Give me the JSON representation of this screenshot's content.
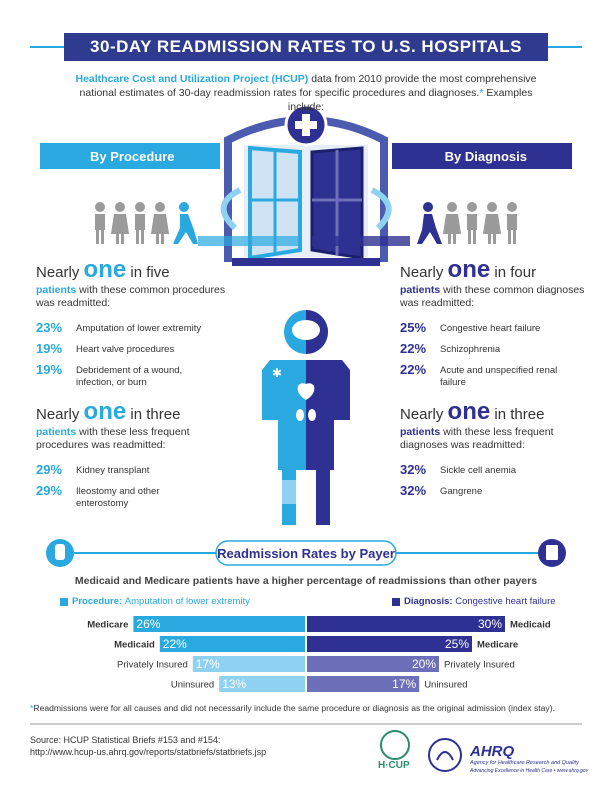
{
  "header": {
    "title": "30-DAY READMISSION RATES TO U.S. HOSPITALS"
  },
  "intro": {
    "lead": "Healthcare Cost and Utilization Project (HCUP)",
    "text": " data from 2010 provide the most comprehensive national estimates of 30-day readmission rates for specific procedures and diagnoses.",
    "asterisk": "*",
    "tail": " Examples include:"
  },
  "procedure": {
    "label": "By Procedure",
    "groups": [
      {
        "lead": "Nearly",
        "one": "one",
        "rest": "in five",
        "patients": "patients",
        "desc": " with these common procedures was readmitted:",
        "items": [
          {
            "pct": "23%",
            "text": "Amputation of lower extremity"
          },
          {
            "pct": "19%",
            "text": "Heart valve procedures"
          },
          {
            "pct": "19%",
            "text": "Debridement of a wound, infection, or burn"
          }
        ]
      },
      {
        "lead": "Nearly",
        "one": "one",
        "rest": "in three",
        "patients": "patients",
        "desc": " with these less frequent procedures was readmitted:",
        "items": [
          {
            "pct": "29%",
            "text": "Kidney transplant"
          },
          {
            "pct": "29%",
            "text": "Ileostomy and other enterostomy"
          }
        ]
      }
    ]
  },
  "diagnosis": {
    "label": "By Diagnosis",
    "groups": [
      {
        "lead": "Nearly",
        "one": "one",
        "rest": "in four",
        "patients": "patients",
        "desc": " with these common diagnoses was readmitted:",
        "items": [
          {
            "pct": "25%",
            "text": "Congestive heart failure"
          },
          {
            "pct": "22%",
            "text": "Schizophrenia"
          },
          {
            "pct": "22%",
            "text": "Acute and unspecified renal failure"
          }
        ]
      },
      {
        "lead": "Nearly",
        "one": "one",
        "rest": "in three",
        "patients": "patients",
        "desc": " with these less frequent diagnoses was readmitted:",
        "items": [
          {
            "pct": "32%",
            "text": "Sickle cell anemia"
          },
          {
            "pct": "32%",
            "text": "Gangrene"
          }
        ]
      }
    ]
  },
  "chart_data": {
    "type": "bar",
    "title": "Readmission Rates by Payer",
    "subtitle": "Medicaid and Medicare patients have a higher percentage of readmissions than other payers",
    "series": [
      {
        "name": "Procedure:",
        "description": "Amputation of lower extremity",
        "color": "#29a9e0",
        "categories": [
          "Medicare",
          "Medicaid",
          "Privately Insured",
          "Uninsured"
        ],
        "values": [
          26,
          22,
          17,
          13
        ],
        "value_labels": [
          "26%",
          "22%",
          "17%",
          "13%"
        ],
        "colors": [
          "#29a9e0",
          "#29a9e0",
          "#8fd1f1",
          "#8fd1f1"
        ]
      },
      {
        "name": "Diagnosis:",
        "description": "Congestive heart failure",
        "color": "#2e3192",
        "categories": [
          "Medicaid",
          "Medicare",
          "Privately Insured",
          "Uninsured"
        ],
        "values": [
          30,
          25,
          20,
          17
        ],
        "value_labels": [
          "30%",
          "25%",
          "20%",
          "17%"
        ],
        "colors": [
          "#2e3192",
          "#2e3192",
          "#6d6fb9",
          "#6d6fb9"
        ]
      }
    ]
  },
  "footnote": {
    "asterisk": "*",
    "text": "Readmissions were for all causes and did not necessarily include the same procedure or diagnosis as the original admission (index stay)."
  },
  "source": {
    "line1": "Source: HCUP Statistical Briefs #153 and #154:",
    "line2": "http://www.hcup-us.ahrq.gov/reports/statbriefs/statbriefs.jsp"
  },
  "logos": {
    "hcup": "H·CUP",
    "ahrq": "AHRQ",
    "ahrq_name": "Agency for Healthcare Research and Quality",
    "ahrq_tagline": "Advancing Excellence in Health Care • www.ahrq.gov"
  }
}
